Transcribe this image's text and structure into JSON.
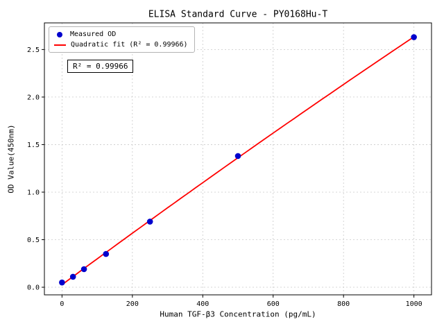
{
  "chart_data": {
    "type": "scatter",
    "title": "ELISA Standard Curve - PY0168Hu-T",
    "xlabel": "Human TGF-β3 Concentration (pg/mL)",
    "ylabel": "OD Value(450nm)",
    "xlim": [
      -50,
      1050
    ],
    "ylim": [
      -0.08,
      2.78
    ],
    "x_ticks": [
      0,
      200,
      400,
      600,
      800,
      1000
    ],
    "y_ticks": [
      0,
      0.5,
      1,
      1.5,
      2,
      2.5
    ],
    "grid": true,
    "annotation": "R² = 0.99966",
    "legend": {
      "position": "upper-left",
      "entries": [
        {
          "label": "Measured OD",
          "marker": "dot",
          "color": "#0000cd"
        },
        {
          "label": "Quadratic fit (R² = 0.99966)",
          "marker": "line",
          "color": "#ff0000"
        }
      ]
    },
    "series": [
      {
        "name": "Measured OD",
        "type": "scatter",
        "color": "#0000cd",
        "x": [
          0,
          31.2,
          62.5,
          125,
          250,
          500,
          1000
        ],
        "y": [
          0.05,
          0.11,
          0.19,
          0.35,
          0.69,
          1.38,
          2.63
        ]
      },
      {
        "name": "Quadratic fit",
        "type": "quadratic-fit",
        "color": "#ff0000",
        "x_range": [
          0,
          1000
        ]
      }
    ]
  }
}
